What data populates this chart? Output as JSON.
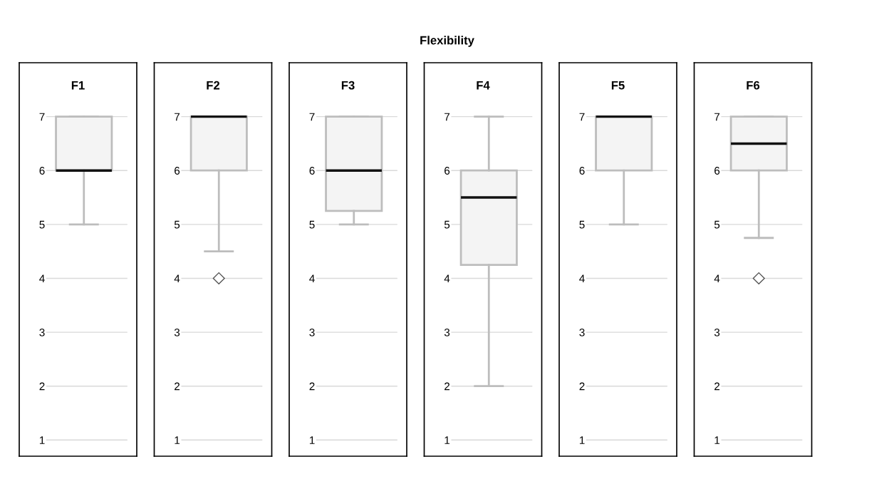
{
  "chart_data": [
    {
      "type": "other",
      "title": "Flexibility"
    },
    {
      "type": "box",
      "title": "F1",
      "categories": [
        null
      ],
      "boxes": [
        {
          "low": 5,
          "q1": 6,
          "median": 6,
          "q3": 7,
          "high": 7
        }
      ],
      "color": "#f4f4f4",
      "ylim": [
        0.7,
        8.0
      ],
      "yticks": [
        1,
        2,
        3,
        4,
        5,
        6,
        7
      ],
      "grid": "y",
      "tick_labels": "y"
    },
    {
      "type": "box",
      "title": "F2",
      "categories": [
        null
      ],
      "boxes": [
        {
          "low": 4.5,
          "q1": 6,
          "median": 7,
          "q3": 7,
          "high": 7,
          "outliers": [
            4
          ]
        }
      ],
      "color": "#f4f4f4",
      "ylim": [
        0.7,
        8.0
      ],
      "yticks": [
        1,
        2,
        3,
        4,
        5,
        6,
        7
      ],
      "grid": "y",
      "tick_labels": "y",
      "marker": "diamond"
    },
    {
      "type": "box",
      "title": "F3",
      "categories": [
        null
      ],
      "boxes": [
        {
          "low": 5,
          "q1": 5.25,
          "median": 6,
          "q3": 7,
          "high": 7
        }
      ],
      "color": "#f4f4f4",
      "ylim": [
        0.7,
        8.0
      ],
      "yticks": [
        1,
        2,
        3,
        4,
        5,
        6,
        7
      ],
      "grid": "y",
      "tick_labels": "y"
    },
    {
      "type": "box",
      "title": "F4",
      "categories": [
        null
      ],
      "boxes": [
        {
          "low": 2,
          "q1": 4.25,
          "median": 5.5,
          "q3": 6,
          "high": 7
        }
      ],
      "color": "#f4f4f4",
      "ylim": [
        0.7,
        8.0
      ],
      "yticks": [
        1,
        2,
        3,
        4,
        5,
        6,
        7
      ],
      "grid": "y",
      "tick_labels": "y"
    },
    {
      "type": "box",
      "title": "F5",
      "categories": [
        null
      ],
      "boxes": [
        {
          "low": 5,
          "q1": 6,
          "median": 7,
          "q3": 7,
          "high": 7
        }
      ],
      "color": "#f4f4f4",
      "ylim": [
        0.7,
        8.0
      ],
      "yticks": [
        1,
        2,
        3,
        4,
        5,
        6,
        7
      ],
      "grid": "y",
      "tick_labels": "y"
    },
    {
      "type": "box",
      "title": "F6",
      "categories": [
        null
      ],
      "boxes": [
        {
          "low": 4.75,
          "q1": 6,
          "median": 6.5,
          "q3": 7,
          "high": 7,
          "outliers": [
            4
          ]
        }
      ],
      "color": "#f4f4f4",
      "ylim": [
        0.7,
        8.0
      ],
      "yticks": [
        1,
        2,
        3,
        4,
        5,
        6,
        7
      ],
      "grid": "y",
      "tick_labels": "y",
      "marker": "diamond"
    }
  ]
}
